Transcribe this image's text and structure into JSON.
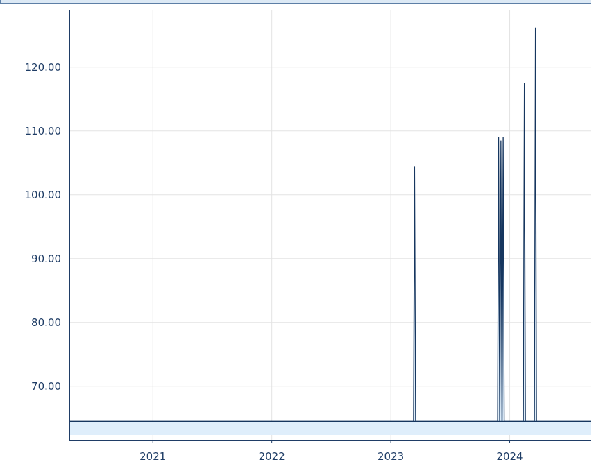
{
  "chart_data": {
    "type": "area",
    "grid": true,
    "x_tick_labels": [
      "2021",
      "2022",
      "2023",
      "2024"
    ],
    "x_ticks": [
      "2021-01-01",
      "2022-01-01",
      "2023-01-01",
      "2024-01-01"
    ],
    "xlim": [
      "2020-04-20",
      "2024-09-05"
    ],
    "y_tick_labels": [
      "70.00",
      "80.00",
      "90.00",
      "100.00",
      "110.00",
      "120.00"
    ],
    "y_ticks": [
      70,
      80,
      90,
      100,
      110,
      120
    ],
    "ylim": [
      61.5,
      129
    ],
    "baseline": 64.5,
    "series": [
      {
        "color": "#16365f",
        "points": [
          {
            "x": "2023-03-15",
            "y": 104.4
          },
          {
            "x": "2023-11-28",
            "y": 109.0
          },
          {
            "x": "2023-12-05",
            "y": 108.5
          },
          {
            "x": "2023-12-12",
            "y": 109.0
          },
          {
            "x": "2024-02-15",
            "y": 117.5
          },
          {
            "x": "2024-03-20",
            "y": 126.2
          }
        ]
      }
    ],
    "colors": {
      "line": "#16365f",
      "fill": "#dfeefb",
      "grid": "#e3e3e3",
      "axis": "#1f3d66",
      "tick_text": "#1f3d66"
    }
  }
}
